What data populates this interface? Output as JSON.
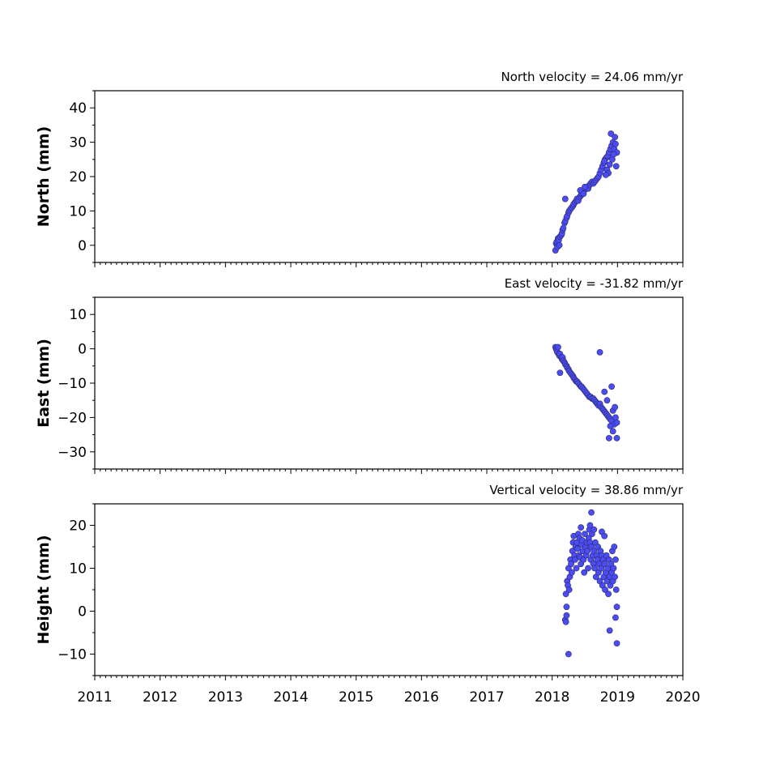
{
  "chart_data": [
    {
      "type": "scatter",
      "panel": "north",
      "title": "North velocity = 24.06 mm/yr",
      "ylabel": "North (mm)",
      "xlim": [
        2011,
        2020
      ],
      "ylim": [
        -5,
        45
      ],
      "yticks": [
        0,
        10,
        20,
        30,
        40
      ],
      "ytick_labels": [
        "0",
        "10",
        "20",
        "30",
        "40"
      ],
      "marker_color": "#4c4cf5",
      "series": [
        {
          "x": [
            2018.05,
            2018.06,
            2018.07,
            2018.08,
            2018.09,
            2018.1,
            2018.11,
            2018.12,
            2018.14,
            2018.15,
            2018.16,
            2018.17,
            2018.19,
            2018.2,
            2018.22,
            2018.23,
            2018.25,
            2018.26,
            2018.28,
            2018.3,
            2018.32,
            2018.33,
            2018.35,
            2018.37,
            2018.38,
            2018.4,
            2018.42,
            2018.44,
            2018.45,
            2018.47,
            2018.49,
            2018.51,
            2018.53,
            2018.55,
            2018.57,
            2018.59,
            2018.61,
            2018.63,
            2018.65,
            2018.67,
            2018.69,
            2018.71,
            2018.73,
            2018.75,
            2018.77,
            2018.79,
            2018.81,
            2018.83,
            2018.85,
            2018.87,
            2018.89,
            2018.91,
            2018.93,
            2018.95,
            2018.97,
            2018.99,
            2018.2,
            2018.5,
            2018.9,
            2018.96,
            2018.84,
            2018.88,
            2018.92,
            2018.98,
            2018.86,
            2018.94,
            2018.8,
            2018.82,
            2018.43,
            2018.48
          ],
          "y": [
            -1.5,
            0.5,
            1.0,
            -0.5,
            2.0,
            1.5,
            0.0,
            2.5,
            3.0,
            3.5,
            4.5,
            5.0,
            6.5,
            7.0,
            8.0,
            8.5,
            9.5,
            10.0,
            10.5,
            11.0,
            11.5,
            12.0,
            12.5,
            13.0,
            13.5,
            13.0,
            14.0,
            14.5,
            15.0,
            15.5,
            16.0,
            16.5,
            17.0,
            16.5,
            17.5,
            18.0,
            18.5,
            18.0,
            18.5,
            19.0,
            19.5,
            20.0,
            21.0,
            22.0,
            23.0,
            24.0,
            25.0,
            25.5,
            26.0,
            27.0,
            28.0,
            29.0,
            30.0,
            28.0,
            29.5,
            27.0,
            13.5,
            17.0,
            32.5,
            31.5,
            22.0,
            23.5,
            25.0,
            23.0,
            21.0,
            26.5,
            24.5,
            20.5,
            16.0,
            15.0
          ]
        }
      ]
    },
    {
      "type": "scatter",
      "panel": "east",
      "title": "East velocity = -31.82 mm/yr",
      "ylabel": "East (mm)",
      "xlim": [
        2011,
        2020
      ],
      "ylim": [
        -35,
        15
      ],
      "yticks": [
        -30,
        -20,
        -10,
        0,
        10
      ],
      "ytick_labels": [
        "−30",
        "−20",
        "−10",
        "0",
        "10"
      ],
      "marker_color": "#4c4cf5",
      "series": [
        {
          "x": [
            2018.05,
            2018.06,
            2018.07,
            2018.08,
            2018.09,
            2018.1,
            2018.11,
            2018.12,
            2018.14,
            2018.15,
            2018.16,
            2018.17,
            2018.19,
            2018.2,
            2018.22,
            2018.23,
            2018.25,
            2018.26,
            2018.28,
            2018.3,
            2018.32,
            2018.33,
            2018.35,
            2018.37,
            2018.38,
            2018.4,
            2018.42,
            2018.44,
            2018.45,
            2018.47,
            2018.49,
            2018.51,
            2018.53,
            2018.55,
            2018.57,
            2018.59,
            2018.61,
            2018.63,
            2018.65,
            2018.67,
            2018.69,
            2018.71,
            2018.73,
            2018.75,
            2018.77,
            2018.79,
            2018.81,
            2018.83,
            2018.85,
            2018.87,
            2018.89,
            2018.91,
            2018.93,
            2018.95,
            2018.97,
            2018.99,
            2018.73,
            2018.12,
            2018.91,
            2018.99,
            2018.87,
            2018.93,
            2018.8,
            2018.84,
            2018.96,
            2018.89
          ],
          "y": [
            0.5,
            0.0,
            -0.5,
            -1.0,
            0.5,
            -1.5,
            -2.0,
            -1.5,
            -2.5,
            -3.0,
            -2.5,
            -3.5,
            -4.0,
            -4.5,
            -5.0,
            -5.5,
            -6.0,
            -6.5,
            -7.0,
            -7.5,
            -8.0,
            -8.5,
            -9.0,
            -9.5,
            -9.5,
            -10.0,
            -10.5,
            -11.0,
            -11.0,
            -11.5,
            -12.0,
            -12.5,
            -13.0,
            -13.5,
            -14.0,
            -14.0,
            -14.5,
            -14.5,
            -15.0,
            -15.5,
            -16.0,
            -16.5,
            -16.0,
            -17.0,
            -17.5,
            -18.0,
            -18.5,
            -19.0,
            -19.5,
            -20.0,
            -20.5,
            -21.0,
            -18.0,
            -22.0,
            -20.0,
            -21.5,
            -1.0,
            -7.0,
            -11.0,
            -26.0,
            -26.0,
            -24.0,
            -12.5,
            -15.0,
            -17.0,
            -22.5
          ]
        }
      ]
    },
    {
      "type": "scatter",
      "panel": "height",
      "title": "Vertical velocity = 38.86 mm/yr",
      "ylabel": "Height (mm)",
      "xlabel": "",
      "xlim": [
        2011,
        2020
      ],
      "ylim": [
        -15,
        25
      ],
      "yticks": [
        -10,
        0,
        10,
        20
      ],
      "ytick_labels": [
        "−10",
        "0",
        "10",
        "20"
      ],
      "xticks": [
        2011,
        2012,
        2013,
        2014,
        2015,
        2016,
        2017,
        2018,
        2019,
        2020
      ],
      "xtick_labels": [
        "2011",
        "2012",
        "2013",
        "2014",
        "2015",
        "2016",
        "2017",
        "2018",
        "2019",
        "2020"
      ],
      "marker_color": "#4c4cf5",
      "series": [
        {
          "x": [
            2018.2,
            2018.21,
            2018.22,
            2018.23,
            2018.24,
            2018.25,
            2018.26,
            2018.27,
            2018.28,
            2018.29,
            2018.3,
            2018.31,
            2018.32,
            2018.33,
            2018.34,
            2018.35,
            2018.36,
            2018.37,
            2018.38,
            2018.39,
            2018.4,
            2018.41,
            2018.42,
            2018.43,
            2018.44,
            2018.45,
            2018.46,
            2018.47,
            2018.48,
            2018.49,
            2018.5,
            2018.51,
            2018.52,
            2018.53,
            2018.54,
            2018.55,
            2018.56,
            2018.57,
            2018.58,
            2018.59,
            2018.6,
            2018.61,
            2018.62,
            2018.63,
            2018.64,
            2018.65,
            2018.66,
            2018.67,
            2018.68,
            2018.69,
            2018.7,
            2018.71,
            2018.72,
            2018.73,
            2018.74,
            2018.75,
            2018.76,
            2018.77,
            2018.78,
            2018.79,
            2018.8,
            2018.81,
            2018.82,
            2018.83,
            2018.84,
            2018.85,
            2018.86,
            2018.87,
            2018.88,
            2018.89,
            2018.9,
            2018.91,
            2018.92,
            2018.93,
            2018.94,
            2018.95,
            2018.96,
            2018.97,
            2018.98,
            2018.99,
            2018.22,
            2018.25,
            2018.21,
            2018.6,
            2018.88,
            2018.99,
            2018.97,
            2018.58,
            2018.64,
            2018.76,
            2018.8,
            2018.44
          ],
          "y": [
            -2.0,
            4.0,
            1.0,
            7.0,
            6.0,
            10.0,
            5.0,
            8.0,
            12.0,
            11.0,
            9.0,
            14.0,
            16.0,
            17.5,
            13.0,
            12.0,
            15.0,
            10.0,
            16.0,
            14.5,
            18.0,
            13.0,
            17.0,
            12.5,
            11.0,
            15.5,
            16.5,
            14.0,
            12.0,
            9.0,
            18.0,
            15.0,
            13.0,
            16.0,
            14.0,
            10.0,
            17.0,
            19.0,
            16.0,
            12.0,
            15.0,
            18.0,
            13.0,
            11.0,
            14.0,
            10.0,
            16.0,
            8.0,
            13.0,
            12.0,
            15.0,
            9.0,
            11.0,
            7.0,
            14.0,
            10.0,
            13.0,
            6.0,
            12.0,
            8.0,
            11.0,
            5.0,
            9.0,
            13.0,
            7.0,
            10.0,
            4.0,
            12.0,
            8.0,
            6.0,
            11.0,
            9.0,
            14.0,
            7.0,
            10.0,
            15.0,
            8.0,
            12.0,
            5.0,
            1.0,
            -1.0,
            -10.0,
            -2.5,
            23.0,
            -4.5,
            -7.5,
            -1.5,
            20.0,
            19.0,
            18.5,
            17.5,
            19.5
          ]
        }
      ]
    }
  ]
}
